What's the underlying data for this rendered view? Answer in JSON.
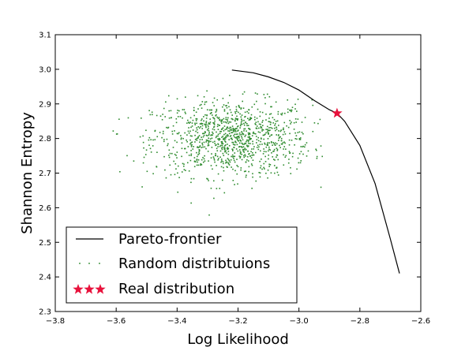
{
  "chart_data": {
    "type": "scatter",
    "title": "",
    "xlabel": "Log Likelihood",
    "ylabel": "Shannon Entropy",
    "xlim": [
      -3.8,
      -2.6
    ],
    "ylim": [
      2.3,
      3.1
    ],
    "xticks": [
      "−3.8",
      "−3.6",
      "−3.4",
      "−3.2",
      "−3.0",
      "−2.8",
      "−2.6"
    ],
    "yticks": [
      "2.3",
      "2.4",
      "2.5",
      "2.6",
      "2.7",
      "2.8",
      "2.9",
      "3.0",
      "3.1"
    ],
    "grid": false,
    "legend_position": "lower-left",
    "series": [
      {
        "name": "Pareto-frontier",
        "kind": "line",
        "color": "#000000",
        "x": [
          -3.22,
          -3.15,
          -3.1,
          -3.05,
          -3.0,
          -2.95,
          -2.9,
          -2.875,
          -2.85,
          -2.8,
          -2.75,
          -2.7,
          -2.67
        ],
        "y": [
          2.998,
          2.99,
          2.978,
          2.962,
          2.94,
          2.91,
          2.883,
          2.873,
          2.85,
          2.78,
          2.67,
          2.51,
          2.41
        ]
      },
      {
        "name": "Random distribtuions",
        "kind": "scatter",
        "color": "#2e8b2e",
        "n_points": 1100,
        "center": [
          -3.22,
          2.8
        ],
        "spread": [
          0.13,
          0.055
        ],
        "x_range": [
          -3.63,
          -2.92
        ],
        "y_range": [
          2.56,
          2.98
        ]
      },
      {
        "name": "Real distribution",
        "kind": "marker",
        "color": "#e8123c",
        "marker": "star",
        "x": [
          -2.875
        ],
        "y": [
          2.873
        ]
      }
    ]
  }
}
